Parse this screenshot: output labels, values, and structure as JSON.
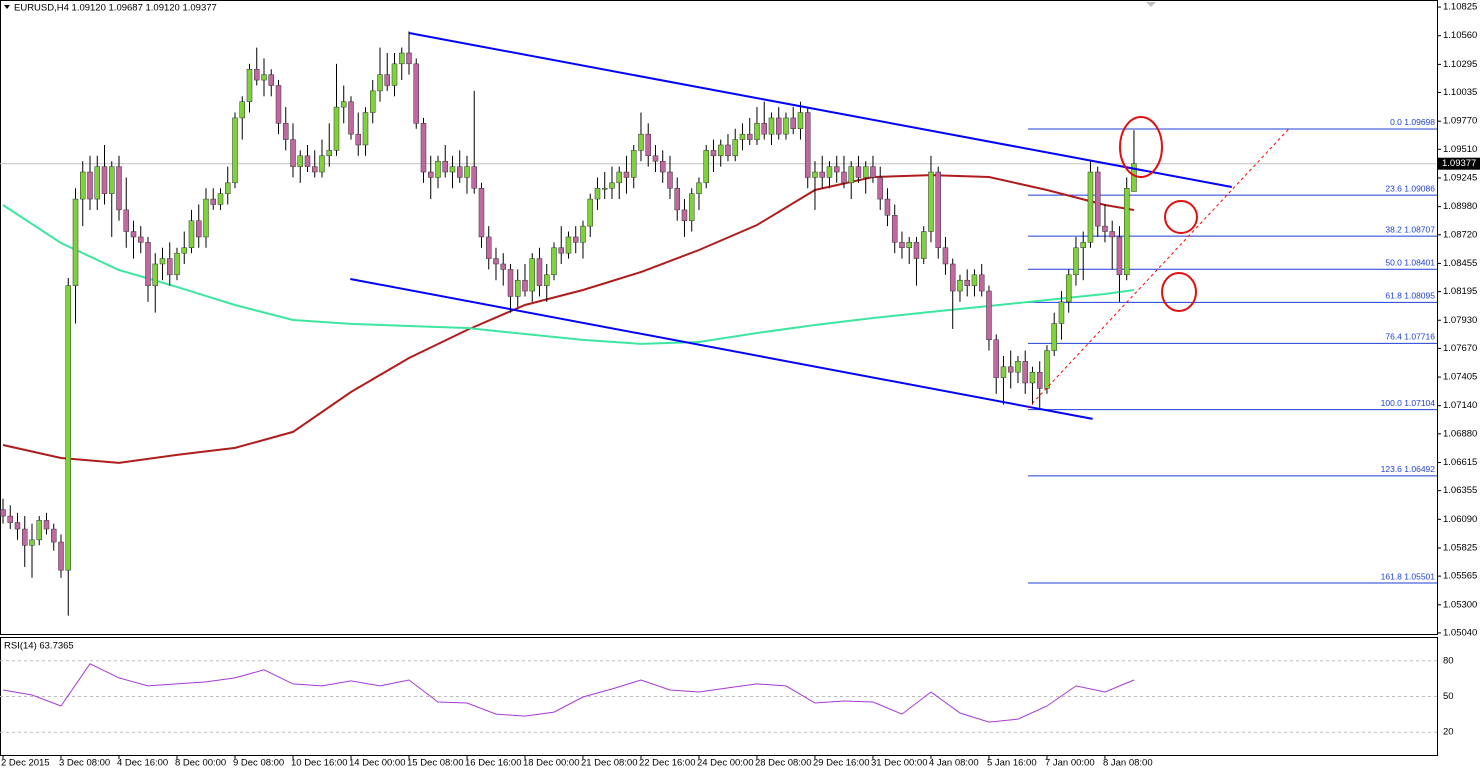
{
  "chart_data": {
    "type": "candlestick",
    "header": "EURUSD,H4  1.09120 1.09687 1.09120 1.09377",
    "up_color": "#7ed23a",
    "down_color": "#c0689f",
    "xlim": [
      -0.414,
      197.8
    ],
    "xticks": [
      {
        "value": 0,
        "label": "2 Dec 2015"
      },
      {
        "value": 8,
        "label": "3 Dec 08:00"
      },
      {
        "value": 16,
        "label": "4 Dec 16:00"
      },
      {
        "value": 24,
        "label": "8 Dec 00:00"
      },
      {
        "value": 32,
        "label": "9 Dec 08:00"
      },
      {
        "value": 40,
        "label": "10 Dec 16:00"
      },
      {
        "value": 48,
        "label": "14 Dec 00:00"
      },
      {
        "value": 56,
        "label": "15 Dec 08:00"
      },
      {
        "value": 64,
        "label": "16 Dec 16:00"
      },
      {
        "value": 72,
        "label": "18 Dec 00:00"
      },
      {
        "value": 80,
        "label": "21 Dec 08:00"
      },
      {
        "value": 88,
        "label": "22 Dec 16:00"
      },
      {
        "value": 96,
        "label": "24 Dec 00:00"
      },
      {
        "value": 104,
        "label": "28 Dec 08:00"
      },
      {
        "value": 112,
        "label": "29 Dec 16:00"
      },
      {
        "value": 120,
        "label": "31 Dec 00:00"
      },
      {
        "value": 128,
        "label": "4 Jan 08:00"
      },
      {
        "value": 136,
        "label": "5 Jan 16:00"
      },
      {
        "value": 144,
        "label": "7 Jan 00:00"
      },
      {
        "value": 152,
        "label": "8 Jan 08:00"
      }
    ],
    "ylim": [
      1.0503,
      1.1089
    ],
    "yticks": [
      1.10825,
      {
        "value": 1.1056,
        "label": "1.10560"
      },
      1.10295,
      1.10035,
      {
        "value": 1.0977,
        "label": "1.09770"
      },
      {
        "value": 1.0951,
        "label": "1.09510"
      },
      1.09245,
      {
        "value": 1.0898,
        "label": "1.08980"
      },
      {
        "value": 1.0872,
        "label": "1.08720"
      },
      1.08455,
      1.08195,
      {
        "value": 1.0793,
        "label": "1.07930"
      },
      {
        "value": 1.0767,
        "label": "1.07670"
      },
      1.07405,
      {
        "value": 1.0714,
        "label": "1.07140"
      },
      {
        "value": 1.0688,
        "label": "1.06880"
      },
      1.06615,
      1.06355,
      {
        "value": 1.0609,
        "label": "1.06090"
      },
      1.05825,
      1.05565,
      {
        "value": 1.053,
        "label": "1.05300"
      },
      {
        "value": 1.0504,
        "label": "1.05040"
      }
    ],
    "candles": [
      [
        1.0618,
        1.0628,
        1.0605,
        1.0612
      ],
      [
        1.0612,
        1.0622,
        1.06,
        1.0606
      ],
      [
        1.0606,
        1.0615,
        1.059,
        1.06
      ],
      [
        1.06,
        1.0612,
        1.0565,
        1.0585
      ],
      [
        1.0585,
        1.0605,
        1.0555,
        1.059
      ],
      [
        1.059,
        1.0612,
        1.0585,
        1.0608
      ],
      [
        1.0608,
        1.0615,
        1.0595,
        1.06
      ],
      [
        1.06,
        1.0605,
        1.058,
        1.0588
      ],
      [
        1.0588,
        1.0595,
        1.0555,
        1.0562
      ],
      [
        1.0562,
        1.0832,
        1.052,
        1.0825
      ],
      [
        1.0825,
        1.0915,
        1.079,
        1.0905
      ],
      [
        1.0905,
        1.094,
        1.088,
        1.093
      ],
      [
        1.093,
        1.0945,
        1.0895,
        1.0905
      ],
      [
        1.0905,
        1.0945,
        1.0895,
        1.0935
      ],
      [
        1.0935,
        1.0955,
        1.09,
        1.091
      ],
      [
        1.091,
        1.094,
        1.087,
        1.0935
      ],
      [
        1.0935,
        1.0945,
        1.0885,
        1.0895
      ],
      [
        1.0895,
        1.0925,
        1.086,
        1.0875
      ],
      [
        1.0875,
        1.0885,
        1.085,
        1.087
      ],
      [
        1.087,
        1.088,
        1.0855,
        1.0865
      ],
      [
        1.0865,
        1.087,
        1.081,
        1.0825
      ],
      [
        1.0825,
        1.0855,
        1.08,
        1.0845
      ],
      [
        1.0845,
        1.086,
        1.083,
        1.085
      ],
      [
        1.085,
        1.0865,
        1.0825,
        1.0835
      ],
      [
        1.0835,
        1.086,
        1.083,
        1.0855
      ],
      [
        1.0855,
        1.0875,
        1.0845,
        1.086
      ],
      [
        1.086,
        1.0895,
        1.0855,
        1.0885
      ],
      [
        1.0885,
        1.09,
        1.086,
        1.087
      ],
      [
        1.087,
        1.0915,
        1.086,
        1.0905
      ],
      [
        1.0905,
        1.0915,
        1.0895,
        1.09
      ],
      [
        1.09,
        1.0915,
        1.0895,
        1.091
      ],
      [
        1.091,
        1.0935,
        1.09,
        1.092
      ],
      [
        1.092,
        1.0985,
        1.0915,
        1.098
      ],
      [
        1.098,
        1.1,
        1.096,
        1.0995
      ],
      [
        1.0995,
        1.103,
        1.0985,
        1.1025
      ],
      [
        1.1025,
        1.1045,
        1.101,
        1.1015
      ],
      [
        1.1015,
        1.1035,
        1.1,
        1.102
      ],
      [
        1.102,
        1.1025,
        1.1,
        1.101
      ],
      [
        1.101,
        1.1015,
        1.0965,
        1.0975
      ],
      [
        1.0975,
        1.099,
        1.095,
        1.096
      ],
      [
        1.096,
        1.0975,
        1.0925,
        1.0935
      ],
      [
        1.0935,
        1.095,
        1.092,
        1.0945
      ],
      [
        1.0945,
        1.0955,
        1.093,
        1.0935
      ],
      [
        1.0935,
        1.095,
        1.0925,
        1.093
      ],
      [
        1.093,
        1.096,
        1.0925,
        1.0945
      ],
      [
        1.0945,
        1.0975,
        1.0935,
        1.095
      ],
      [
        1.095,
        1.103,
        1.0945,
        1.099
      ],
      [
        1.099,
        1.101,
        1.0975,
        1.0995
      ],
      [
        1.0995,
        1.1,
        1.096,
        1.0965
      ],
      [
        1.0965,
        1.0985,
        1.0945,
        1.0955
      ],
      [
        1.0955,
        1.099,
        1.0945,
        1.0985
      ],
      [
        1.0985,
        1.1015,
        1.0975,
        1.1005
      ],
      [
        1.1005,
        1.1045,
        1.0995,
        1.102
      ],
      [
        1.102,
        1.104,
        1.1005,
        1.101
      ],
      [
        1.101,
        1.104,
        1.1,
        1.103
      ],
      [
        1.103,
        1.1045,
        1.1015,
        1.104
      ],
      [
        1.104,
        1.106,
        1.102,
        1.103
      ],
      [
        1.103,
        1.1035,
        1.097,
        1.0975
      ],
      [
        1.0975,
        1.098,
        1.092,
        1.093
      ],
      [
        1.093,
        1.0945,
        1.0905,
        1.0925
      ],
      [
        1.0925,
        1.0945,
        1.0915,
        1.094
      ],
      [
        1.094,
        1.0955,
        1.0925,
        1.093
      ],
      [
        1.093,
        1.0945,
        1.0915,
        1.0935
      ],
      [
        1.0935,
        1.095,
        1.092,
        1.0925
      ],
      [
        1.0925,
        1.0945,
        1.091,
        1.0935
      ],
      [
        1.0935,
        1.1005,
        1.091,
        1.0915
      ],
      [
        1.0915,
        1.092,
        1.086,
        1.087
      ],
      [
        1.087,
        1.088,
        1.084,
        1.085
      ],
      [
        1.085,
        1.086,
        1.083,
        1.0845
      ],
      [
        1.0845,
        1.0855,
        1.0825,
        1.084
      ],
      [
        1.084,
        1.0845,
        1.08,
        1.0815
      ],
      [
        1.0815,
        1.084,
        1.0805,
        1.083
      ],
      [
        1.083,
        1.0845,
        1.0815,
        1.082
      ],
      [
        1.082,
        1.0855,
        1.081,
        1.085
      ],
      [
        1.085,
        1.086,
        1.0815,
        1.0825
      ],
      [
        1.0825,
        1.0845,
        1.081,
        1.0835
      ],
      [
        1.0835,
        1.0865,
        1.083,
        1.086
      ],
      [
        1.086,
        1.088,
        1.0845,
        1.0855
      ],
      [
        1.0855,
        1.0875,
        1.085,
        1.087
      ],
      [
        1.087,
        1.088,
        1.0855,
        1.0865
      ],
      [
        1.0865,
        1.0885,
        1.085,
        1.088
      ],
      [
        1.088,
        1.091,
        1.087,
        1.0905
      ],
      [
        1.0905,
        1.0925,
        1.0895,
        1.0915
      ],
      [
        1.0915,
        1.093,
        1.0905,
        1.0915
      ],
      [
        1.0915,
        1.0935,
        1.0905,
        1.092
      ],
      [
        1.092,
        1.0935,
        1.0905,
        1.093
      ],
      [
        1.093,
        1.0945,
        1.091,
        1.0925
      ],
      [
        1.0925,
        1.0955,
        1.0915,
        1.095
      ],
      [
        1.095,
        1.0985,
        1.094,
        1.0965
      ],
      [
        1.0965,
        1.0975,
        1.0935,
        1.0945
      ],
      [
        1.0945,
        1.0955,
        1.093,
        1.094
      ],
      [
        1.094,
        1.095,
        1.092,
        1.093
      ],
      [
        1.093,
        1.0945,
        1.0905,
        1.0915
      ],
      [
        1.0915,
        1.0925,
        1.0885,
        1.0895
      ],
      [
        1.0895,
        1.0905,
        1.087,
        1.0885
      ],
      [
        1.0885,
        1.0915,
        1.0875,
        1.091
      ],
      [
        1.091,
        1.0925,
        1.0895,
        1.092
      ],
      [
        1.092,
        1.0955,
        1.0915,
        1.095
      ],
      [
        1.095,
        1.096,
        1.093,
        1.0945
      ],
      [
        1.0945,
        1.096,
        1.0935,
        1.0955
      ],
      [
        1.0955,
        1.0965,
        1.094,
        1.0945
      ],
      [
        1.0945,
        1.097,
        1.094,
        1.096
      ],
      [
        1.096,
        1.0975,
        1.095,
        1.0965
      ],
      [
        1.0965,
        1.098,
        1.0955,
        1.096
      ],
      [
        1.096,
        1.099,
        1.0955,
        1.0975
      ],
      [
        1.0975,
        1.0995,
        1.096,
        1.0965
      ],
      [
        1.0965,
        1.0985,
        1.0955,
        1.098
      ],
      [
        1.098,
        1.099,
        1.096,
        1.0965
      ],
      [
        1.0965,
        1.0985,
        1.096,
        1.098
      ],
      [
        1.098,
        1.099,
        1.0965,
        1.097
      ],
      [
        1.097,
        1.0995,
        1.096,
        1.0985
      ],
      [
        1.0985,
        1.099,
        1.0915,
        1.0925
      ],
      [
        1.0925,
        1.094,
        1.0895,
        1.093
      ],
      [
        1.093,
        1.0945,
        1.0915,
        1.0925
      ],
      [
        1.0925,
        1.094,
        1.0915,
        1.0935
      ],
      [
        1.0935,
        1.0945,
        1.092,
        1.093
      ],
      [
        1.093,
        1.0945,
        1.0915,
        1.092
      ],
      [
        1.092,
        1.094,
        1.0905,
        1.0935
      ],
      [
        1.0935,
        1.0945,
        1.092,
        1.0925
      ],
      [
        1.0925,
        1.094,
        1.091,
        1.0935
      ],
      [
        1.0935,
        1.0945,
        1.092,
        1.0925
      ],
      [
        1.0925,
        1.0935,
        1.0895,
        1.0905
      ],
      [
        1.0905,
        1.0915,
        1.088,
        1.089
      ],
      [
        1.089,
        1.09,
        1.0855,
        1.0865
      ],
      [
        1.0865,
        1.0875,
        1.085,
        1.086
      ],
      [
        1.086,
        1.087,
        1.0845,
        1.0865
      ],
      [
        1.0865,
        1.087,
        1.0825,
        1.085
      ],
      [
        1.085,
        1.088,
        1.0845,
        1.0875
      ],
      [
        1.0875,
        1.0945,
        1.0865,
        1.093
      ],
      [
        1.093,
        1.0935,
        1.085,
        1.086
      ],
      [
        1.086,
        1.087,
        1.0835,
        1.0845
      ],
      [
        1.0845,
        1.085,
        1.0785,
        1.082
      ],
      [
        1.082,
        1.0835,
        1.081,
        1.083
      ],
      [
        1.083,
        1.084,
        1.0815,
        1.0825
      ],
      [
        1.0825,
        1.084,
        1.0815,
        1.0835
      ],
      [
        1.0835,
        1.0845,
        1.0815,
        1.082
      ],
      [
        1.082,
        1.0825,
        1.0765,
        1.0775
      ],
      [
        1.0775,
        1.078,
        1.0725,
        1.074
      ],
      [
        1.074,
        1.076,
        1.0715,
        1.075
      ],
      [
        1.075,
        1.0765,
        1.073,
        1.0745
      ],
      [
        1.0745,
        1.076,
        1.0735,
        1.0755
      ],
      [
        1.0755,
        1.0765,
        1.0725,
        1.0735
      ],
      [
        1.0735,
        1.075,
        1.0715,
        1.0745
      ],
      [
        1.0745,
        1.0755,
        1.0712,
        1.073
      ],
      [
        1.073,
        1.077,
        1.0725,
        1.0765
      ],
      [
        1.0765,
        1.08,
        1.076,
        1.079
      ],
      [
        1.079,
        1.082,
        1.0775,
        1.081
      ],
      [
        1.081,
        1.084,
        1.08,
        1.0835
      ],
      [
        1.0835,
        1.087,
        1.0825,
        1.086
      ],
      [
        1.086,
        1.0875,
        1.083,
        1.0865
      ],
      [
        1.0865,
        1.094,
        1.086,
        1.093
      ],
      [
        1.093,
        1.0935,
        1.087,
        1.088
      ],
      [
        1.088,
        1.09,
        1.0865,
        1.0875
      ],
      [
        1.0875,
        1.0885,
        1.084,
        1.087
      ],
      [
        1.087,
        1.088,
        1.081,
        1.0835
      ],
      [
        1.0835,
        1.0925,
        1.083,
        1.0915
      ],
      [
        1.0912,
        1.09687,
        1.0912,
        1.09377
      ]
    ],
    "moving_averages": [
      {
        "color": "#b01c1c",
        "x": [
          0,
          8,
          16,
          24,
          32,
          40,
          48,
          56,
          64,
          72,
          80,
          88,
          96,
          104,
          112,
          120,
          128,
          136,
          144,
          152,
          156
        ],
        "values": [
          1.06777,
          1.06657,
          1.06611,
          1.06685,
          1.0675,
          1.06898,
          1.07267,
          1.07581,
          1.0784,
          1.08071,
          1.0821,
          1.08376,
          1.08579,
          1.0881,
          1.09134,
          1.09254,
          1.09272,
          1.09254,
          1.09134,
          1.08995,
          1.08949
        ]
      },
      {
        "color": "#3ee6a0",
        "x": [
          0,
          8,
          16,
          24,
          32,
          40,
          48,
          56,
          64,
          72,
          80,
          88,
          96,
          104,
          112,
          120,
          128,
          136,
          144,
          152,
          156
        ],
        "values": [
          1.08995,
          1.08644,
          1.08394,
          1.08238,
          1.08071,
          1.07932,
          1.07896,
          1.07877,
          1.07858,
          1.07803,
          1.07748,
          1.07711,
          1.07729,
          1.07812,
          1.07886,
          1.07951,
          1.08007,
          1.08062,
          1.08117,
          1.08173,
          1.0821
        ]
      }
    ],
    "trendlines": [
      {
        "color": "#0000ff",
        "x": [
          56,
          169.5
        ],
        "values": [
          1.10585,
          1.09162
        ]
      },
      {
        "color": "#0000ff",
        "x": [
          47.9,
          150.3
        ],
        "values": [
          1.08311,
          1.07018
        ]
      },
      {
        "color": "#ff0000",
        "dashed": true,
        "x": [
          141.4,
          177.5
        ],
        "values": [
          1.0712,
          1.09708
        ]
      }
    ],
    "fibonacci": {
      "color": "#1f3fd8",
      "levels": [
        {
          "value": 1.09698,
          "label": "0.0 1.09698"
        },
        {
          "value": 1.09086,
          "label": "23.6 1.09086"
        },
        {
          "value": 1.08707,
          "label": "38.2 1.08707"
        },
        {
          "value": 1.08401,
          "label": "50.0 1.08401"
        },
        {
          "value": 1.08095,
          "label": "61.8 1.08095"
        },
        {
          "value": 1.07716,
          "label": "76.4 1.07716"
        },
        {
          "value": 1.07104,
          "label": "100.0 1.07104"
        },
        {
          "value": 1.06492,
          "label": "123.6 1.06492"
        },
        {
          "value": 1.05501,
          "label": "161.8 1.05501"
        }
      ]
    },
    "rsi": {
      "title": "RSI(14) 63.7365",
      "color": "#a63ad6",
      "ylim": [
        0,
        100
      ],
      "yticks": [
        20,
        50,
        80
      ],
      "x": [
        0,
        4,
        8,
        12,
        16,
        20,
        24,
        28,
        32,
        36,
        40,
        44,
        48,
        52,
        56,
        60,
        64,
        68,
        72,
        76,
        80,
        84,
        88,
        92,
        96,
        100,
        104,
        108,
        112,
        116,
        120,
        124,
        128,
        132,
        136,
        140,
        144,
        148,
        152,
        156
      ],
      "values": [
        55.5,
        51.3,
        42.0,
        77.5,
        65.6,
        58.9,
        60.6,
        62.3,
        65.6,
        72.4,
        60.6,
        58.9,
        63.1,
        58.9,
        63.9,
        45.4,
        44.5,
        35.2,
        33.5,
        36.9,
        49.6,
        56.3,
        63.9,
        55.5,
        53.8,
        57.2,
        60.6,
        58.9,
        44.5,
        46.2,
        45.4,
        35.2,
        53.8,
        36.1,
        28.5,
        31.0,
        42.0,
        58.9,
        53.8,
        63.9
      ]
    }
  }
}
